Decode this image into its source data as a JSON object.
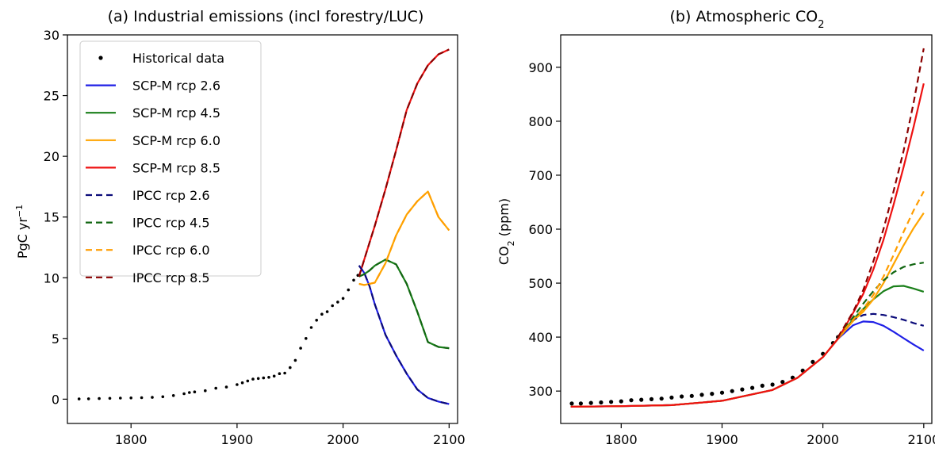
{
  "chart_data": [
    {
      "type": "line",
      "title": "(a) Industrial emissions (incl forestry/LUC)",
      "ylabel": "PgC yr⁻¹",
      "xlabel": "",
      "xlim": [
        1740,
        2108
      ],
      "ylim": [
        -2,
        30
      ],
      "xticks": [
        1800,
        1900,
        2000,
        2100
      ],
      "yticks": [
        0,
        5,
        10,
        15,
        20,
        25,
        30
      ],
      "grid": false,
      "legend": "upper-left",
      "historical": {
        "name": "Historical data",
        "x": [
          1751,
          1760,
          1770,
          1780,
          1790,
          1800,
          1810,
          1820,
          1830,
          1840,
          1850,
          1855,
          1860,
          1870,
          1880,
          1890,
          1900,
          1905,
          1910,
          1915,
          1920,
          1925,
          1930,
          1935,
          1940,
          1945,
          1950,
          1955,
          1960,
          1965,
          1970,
          1975,
          1980,
          1985,
          1990,
          1995,
          2000,
          2005,
          2010,
          2014
        ],
        "y": [
          0.02,
          0.03,
          0.05,
          0.07,
          0.09,
          0.1,
          0.12,
          0.15,
          0.2,
          0.3,
          0.45,
          0.55,
          0.6,
          0.7,
          0.9,
          1.0,
          1.2,
          1.35,
          1.5,
          1.65,
          1.7,
          1.75,
          1.8,
          1.9,
          2.1,
          2.15,
          2.6,
          3.2,
          4.2,
          5.0,
          5.9,
          6.5,
          7.0,
          7.2,
          7.7,
          8.0,
          8.3,
          9.0,
          9.8,
          10.2
        ]
      },
      "series": [
        {
          "name": "SCP-M rcp 2.6",
          "style": "solid",
          "x": [
            2015,
            2020,
            2025,
            2030,
            2040,
            2050,
            2060,
            2070,
            2080,
            2090,
            2100
          ],
          "y": [
            11.0,
            10.4,
            9.3,
            7.8,
            5.3,
            3.6,
            2.1,
            0.8,
            0.1,
            -0.2,
            -0.4
          ]
        },
        {
          "name": "SCP-M rcp 4.5",
          "style": "solid",
          "x": [
            2015,
            2020,
            2025,
            2030,
            2040,
            2050,
            2060,
            2070,
            2080,
            2090,
            2100
          ],
          "y": [
            10.1,
            10.3,
            10.6,
            11.0,
            11.5,
            11.1,
            9.5,
            7.2,
            4.7,
            4.3,
            4.2
          ]
        },
        {
          "name": "SCP-M rcp 6.0",
          "style": "solid",
          "x": [
            2015,
            2020,
            2030,
            2040,
            2050,
            2060,
            2070,
            2080,
            2090,
            2100
          ],
          "y": [
            9.5,
            9.4,
            9.6,
            11.2,
            13.5,
            15.2,
            16.3,
            17.1,
            15.0,
            13.9
          ]
        },
        {
          "name": "SCP-M rcp 8.5",
          "style": "solid",
          "x": [
            2015,
            2020,
            2030,
            2040,
            2050,
            2060,
            2070,
            2080,
            2090,
            2100
          ],
          "y": [
            10.1,
            11.5,
            14.3,
            17.3,
            20.5,
            23.8,
            26.0,
            27.5,
            28.4,
            28.8
          ]
        },
        {
          "name": "IPCC rcp 2.6",
          "style": "dashed",
          "x": [
            2015,
            2020,
            2025,
            2030,
            2040,
            2050,
            2060,
            2070,
            2080,
            2090,
            2100
          ],
          "y": [
            11.0,
            10.4,
            9.3,
            7.8,
            5.3,
            3.6,
            2.1,
            0.8,
            0.1,
            -0.2,
            -0.4
          ]
        },
        {
          "name": "IPCC rcp 4.5",
          "style": "dashed",
          "x": [
            2015,
            2020,
            2025,
            2030,
            2040,
            2050,
            2060,
            2070,
            2080,
            2090,
            2100
          ],
          "y": [
            10.1,
            10.3,
            10.6,
            11.0,
            11.5,
            11.1,
            9.5,
            7.2,
            4.7,
            4.3,
            4.2
          ]
        },
        {
          "name": "IPCC rcp 6.0",
          "style": "dashed",
          "x": [
            2015,
            2020,
            2030,
            2040,
            2050,
            2060,
            2070,
            2080,
            2090,
            2100
          ],
          "y": [
            9.5,
            9.4,
            9.6,
            11.2,
            13.5,
            15.2,
            16.3,
            17.1,
            15.0,
            13.9
          ]
        },
        {
          "name": "IPCC rcp 8.5",
          "style": "dashed",
          "x": [
            2015,
            2020,
            2030,
            2040,
            2050,
            2060,
            2070,
            2080,
            2090,
            2100
          ],
          "y": [
            10.1,
            11.5,
            14.3,
            17.3,
            20.5,
            23.8,
            26.0,
            27.5,
            28.4,
            28.8
          ]
        }
      ]
    },
    {
      "type": "line",
      "title": "(b) Atmospheric CO₂",
      "ylabel": "CO₂ (ppm)",
      "xlabel": "",
      "xlim": [
        1740,
        2108
      ],
      "ylim": [
        240,
        960
      ],
      "xticks": [
        1800,
        1900,
        2000,
        2100
      ],
      "yticks": [
        300,
        400,
        500,
        600,
        700,
        800,
        900
      ],
      "grid": false,
      "legend": "none",
      "historical": {
        "name": "Historical data",
        "x": [
          1751,
          1760,
          1770,
          1780,
          1790,
          1800,
          1810,
          1820,
          1830,
          1840,
          1850,
          1860,
          1870,
          1880,
          1890,
          1900,
          1910,
          1920,
          1930,
          1940,
          1950,
          1960,
          1970,
          1980,
          1990,
          2000,
          2010,
          2015
        ],
        "y": [
          277,
          277,
          278,
          279,
          280,
          281,
          283,
          284,
          285,
          286,
          288,
          290,
          291,
          293,
          295,
          297,
          300,
          303,
          306,
          310,
          312,
          317,
          325,
          338,
          354,
          369,
          389,
          400
        ]
      },
      "series": [
        {
          "name": "SCP-M rcp 2.6",
          "style": "solid",
          "x": [
            1750,
            1800,
            1850,
            1900,
            1950,
            1975,
            2000,
            2015,
            2030,
            2040,
            2050,
            2060,
            2070,
            2080,
            2090,
            2100
          ],
          "y": [
            271,
            272,
            274,
            282,
            302,
            325,
            363,
            397,
            422,
            429,
            428,
            421,
            410,
            398,
            386,
            375
          ]
        },
        {
          "name": "SCP-M rcp 4.5",
          "style": "solid",
          "x": [
            1750,
            1800,
            1850,
            1900,
            1950,
            1975,
            2000,
            2015,
            2030,
            2040,
            2050,
            2060,
            2070,
            2080,
            2090,
            2100
          ],
          "y": [
            271,
            272,
            274,
            282,
            302,
            325,
            363,
            397,
            433,
            452,
            470,
            485,
            494,
            495,
            490,
            484
          ]
        },
        {
          "name": "SCP-M rcp 6.0",
          "style": "solid",
          "x": [
            1750,
            1800,
            1850,
            1900,
            1950,
            1975,
            2000,
            2015,
            2030,
            2040,
            2050,
            2060,
            2070,
            2080,
            2090,
            2100
          ],
          "y": [
            271,
            272,
            274,
            282,
            302,
            325,
            363,
            397,
            430,
            447,
            470,
            500,
            535,
            570,
            602,
            630
          ]
        },
        {
          "name": "SCP-M rcp 8.5",
          "style": "solid",
          "x": [
            1750,
            1800,
            1850,
            1900,
            1950,
            1975,
            2000,
            2015,
            2030,
            2040,
            2050,
            2060,
            2070,
            2080,
            2090,
            2100
          ],
          "y": [
            271,
            272,
            274,
            282,
            302,
            325,
            363,
            397,
            445,
            480,
            525,
            580,
            645,
            715,
            790,
            870
          ]
        },
        {
          "name": "IPCC rcp 2.6",
          "style": "dashed",
          "x": [
            2015,
            2030,
            2040,
            2050,
            2060,
            2070,
            2080,
            2090,
            2100
          ],
          "y": [
            400,
            432,
            441,
            443,
            441,
            437,
            432,
            426,
            421
          ]
        },
        {
          "name": "IPCC rcp 4.5",
          "style": "dashed",
          "x": [
            2015,
            2030,
            2040,
            2050,
            2060,
            2070,
            2080,
            2090,
            2100
          ],
          "y": [
            400,
            437,
            462,
            485,
            505,
            520,
            530,
            535,
            538
          ]
        },
        {
          "name": "IPCC rcp 6.0",
          "style": "dashed",
          "x": [
            2015,
            2030,
            2040,
            2050,
            2060,
            2070,
            2080,
            2090,
            2100
          ],
          "y": [
            400,
            432,
            452,
            478,
            512,
            552,
            595,
            635,
            670
          ]
        },
        {
          "name": "IPCC rcp 8.5",
          "style": "dashed",
          "x": [
            2015,
            2030,
            2040,
            2050,
            2060,
            2070,
            2080,
            2090,
            2100
          ],
          "y": [
            400,
            447,
            487,
            540,
            600,
            670,
            745,
            835,
            935
          ]
        }
      ]
    }
  ],
  "colors": {
    "Historical data": "#000000",
    "SCP-M rcp 2.6": "#1f1fe6",
    "SCP-M rcp 4.5": "#1a7f1a",
    "SCP-M rcp 6.0": "#ffa500",
    "SCP-M rcp 8.5": "#ee1111",
    "IPCC rcp 2.6": "#0b0b7a",
    "IPCC rcp 4.5": "#116611",
    "IPCC rcp 6.0": "#ff9d00",
    "IPCC rcp 8.5": "#8b0000"
  }
}
